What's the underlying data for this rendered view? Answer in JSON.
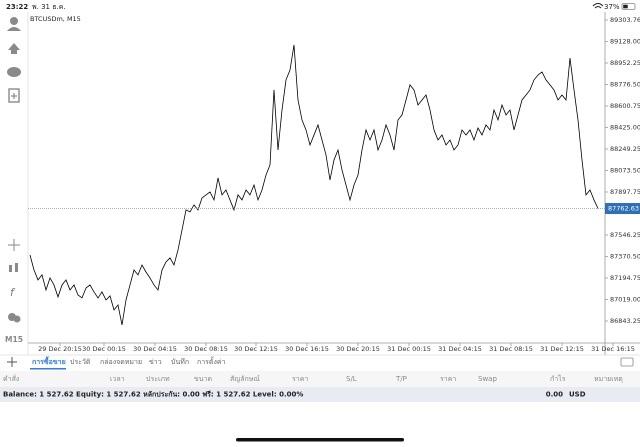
{
  "status_bar": {
    "time": "23:22",
    "date": "พ. 31 ธ.ค.",
    "battery": "37%"
  },
  "timeframe": "M15",
  "chart_data": {
    "type": "line",
    "title": "BTCUSDm, M15",
    "color": "#000000",
    "values": [
      87383,
      87260,
      87179,
      87220,
      87097,
      87195,
      87138,
      87040,
      87138,
      87179,
      87097,
      87138,
      87056,
      87032,
      87113,
      87138,
      87081,
      87032,
      87081,
      87015,
      87048,
      86934,
      86974,
      86811,
      87015,
      87138,
      87260,
      87220,
      87301,
      87244,
      87195,
      87138,
      87097,
      87260,
      87326,
      87359,
      87301,
      87424,
      87587,
      87751,
      87735,
      87792,
      87751,
      87849,
      87874,
      87898,
      87833,
      88013,
      87874,
      87914,
      87833,
      87751,
      87874,
      87833,
      87914,
      87874,
      87955,
      87833,
      87914,
      88037,
      88119,
      88732,
      88241,
      88568,
      88814,
      88895,
      89100,
      88650,
      88487,
      88405,
      88282,
      88364,
      88446,
      88323,
      88201,
      87996,
      88160,
      88241,
      88078,
      87955,
      87833,
      87955,
      88037,
      88241,
      88405,
      88323,
      88405,
      88241,
      88323,
      88446,
      88364,
      88241,
      88487,
      88527,
      88650,
      88773,
      88732,
      88609,
      88650,
      88691,
      88568,
      88405,
      88323,
      88364,
      88282,
      88323,
      88241,
      88282,
      88405,
      88364,
      88405,
      88323,
      88421,
      88364,
      88446,
      88405,
      88568,
      88487,
      88609,
      88527,
      88568,
      88405,
      88527,
      88650,
      88691,
      88732,
      88814,
      88854,
      88879,
      88814,
      88773,
      88732,
      88650,
      88691,
      88650,
      88993,
      88732,
      88487,
      88160,
      87874,
      87914,
      87833,
      87763
    ],
    "xlim": [
      0,
      142
    ],
    "ylim": [
      86663.42,
      89369.15
    ],
    "yticks": [
      {
        "value": 89303.76,
        "label": "89303.76"
      },
      {
        "value": 89128.0,
        "label": "89128.00"
      },
      {
        "value": 88952.25,
        "label": "88952.25"
      },
      {
        "value": 88776.5,
        "label": "88776.50"
      },
      {
        "value": 88600.75,
        "label": "88600.75"
      },
      {
        "value": 88425.0,
        "label": "88425.00"
      },
      {
        "value": 88249.25,
        "label": "88249.25"
      },
      {
        "value": 88073.5,
        "label": "88073.50"
      },
      {
        "value": 87897.75,
        "label": "87897.75"
      },
      {
        "value": 87546.25,
        "label": "87546.25"
      },
      {
        "value": 87370.5,
        "label": "87370.50"
      },
      {
        "value": 87194.75,
        "label": "87194.75"
      },
      {
        "value": 87019.0,
        "label": "87019.00"
      },
      {
        "value": 86843.25,
        "label": "86843.25"
      }
    ],
    "xticks": [
      {
        "value": 7.5,
        "label": "29 Dec 20:15"
      },
      {
        "value": 18.5,
        "label": "30 Dec 00:15"
      },
      {
        "value": 31.25,
        "label": "30 Dec 04:15"
      },
      {
        "value": 44,
        "label": "30 Dec 08:15"
      },
      {
        "value": 56.5,
        "label": "30 Dec 12:15"
      },
      {
        "value": 69.25,
        "label": "30 Dec 16:15"
      },
      {
        "value": 82,
        "label": "30 Dec 20:15"
      },
      {
        "value": 94.75,
        "label": "31 Dec 00:15"
      },
      {
        "value": 107.5,
        "label": "31 Dec 04:15"
      },
      {
        "value": 120.25,
        "label": "31 Dec 08:15"
      },
      {
        "value": 133,
        "label": "31 Dec 12:15"
      },
      {
        "value": 145.75,
        "label": "31 Dec 16:15"
      }
    ],
    "current_price": {
      "value": 87762.63,
      "label": "87762.63"
    }
  },
  "tabs": [
    "การซื้อขาย",
    "ประวัติ",
    "กล่องจดหมาย",
    "ข่าว",
    "บันทึก",
    "การตั้งค่า"
  ],
  "columns": [
    "คำสั่ง",
    "เวลา",
    "ประเภท",
    "ขนาด",
    "สัญลักษณ์",
    "ราคา",
    "S/L",
    "T/P",
    "ราคา",
    "Swap",
    "กำไร",
    "หมายเหตุ"
  ],
  "balance": {
    "text": "Balance: 1 527.62 Equity: 1 527.62 หลักประกัน: 0.00 ฟรี: 1 527.62 Level: 0.00%",
    "profit": "0.00",
    "currency": "USD"
  }
}
